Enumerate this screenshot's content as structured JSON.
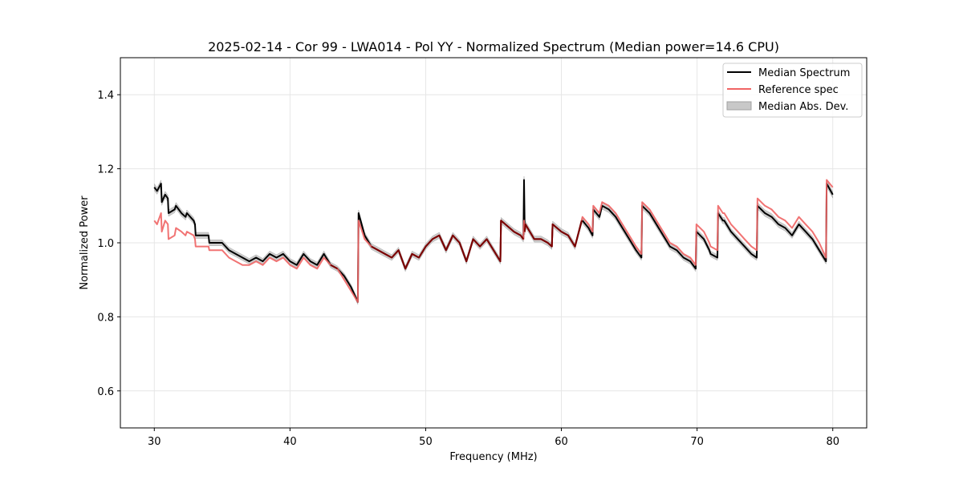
{
  "chart_data": {
    "type": "line",
    "title": "2025-02-14 - Cor 99 - LWA014 - Pol YY - Normalized Spectrum (Median power=14.6 CPU)",
    "xlabel": "Frequency (MHz)",
    "ylabel": "Normalized Power",
    "xlim": [
      27.5,
      82.5
    ],
    "ylim": [
      0.5,
      1.5
    ],
    "xticks": [
      30,
      40,
      50,
      60,
      70,
      80
    ],
    "xtick_labels": [
      "30",
      "40",
      "50",
      "60",
      "70",
      "80"
    ],
    "yticks": [
      0.6,
      0.8,
      1.0,
      1.2,
      1.4
    ],
    "ytick_labels": [
      "0.6",
      "0.8",
      "1.0",
      "1.2",
      "1.4"
    ],
    "grid": true,
    "legend_position": "top-right",
    "legend": [
      {
        "label": "Median Spectrum",
        "kind": "line",
        "color": "#000000"
      },
      {
        "label": "Reference spec",
        "kind": "line",
        "color": "#f06464"
      },
      {
        "label": "Median Abs. Dev.",
        "kind": "patch",
        "color": "#c8c8c8"
      }
    ],
    "series": [
      {
        "name": "Median Spectrum",
        "color": "#000000",
        "x": [
          30.0,
          30.2,
          30.5,
          30.55,
          30.8,
          31.0,
          31.05,
          31.5,
          31.6,
          32.0,
          32.3,
          32.4,
          32.9,
          33.0,
          33.05,
          34.0,
          34.05,
          35.0,
          35.5,
          36.0,
          36.5,
          37.0,
          37.5,
          38.0,
          38.5,
          39.0,
          39.5,
          40.0,
          40.5,
          41.0,
          41.5,
          42.0,
          42.5,
          43.0,
          43.5,
          44.0,
          44.5,
          45.0,
          45.05,
          45.5,
          46.0,
          46.5,
          47.0,
          47.5,
          48.0,
          48.5,
          49.0,
          49.5,
          50.0,
          50.5,
          51.0,
          51.5,
          52.0,
          52.5,
          53.0,
          53.5,
          54.0,
          54.5,
          55.0,
          55.5,
          55.55,
          56.5,
          57.0,
          57.2,
          57.25,
          57.3,
          57.35,
          58.0,
          58.5,
          59.0,
          59.3,
          59.35,
          60.0,
          60.5,
          61.0,
          61.5,
          61.55,
          62.0,
          62.3,
          62.35,
          62.8,
          63.0,
          63.5,
          64.0,
          64.5,
          65.0,
          65.5,
          65.9,
          65.95,
          66.5,
          67.0,
          67.5,
          68.0,
          68.5,
          69.0,
          69.5,
          69.9,
          69.95,
          70.5,
          70.9,
          71.0,
          71.5,
          71.55,
          71.9,
          72.0,
          72.5,
          73.0,
          73.5,
          74.0,
          74.4,
          74.45,
          75.0,
          75.5,
          76.0,
          76.5,
          77.0,
          77.5,
          78.0,
          78.5,
          79.0,
          79.5,
          79.55,
          80.0
        ],
        "y": [
          1.15,
          1.14,
          1.16,
          1.11,
          1.13,
          1.12,
          1.08,
          1.09,
          1.1,
          1.08,
          1.07,
          1.08,
          1.06,
          1.05,
          1.02,
          1.02,
          1.0,
          1.0,
          0.98,
          0.97,
          0.96,
          0.95,
          0.96,
          0.95,
          0.97,
          0.96,
          0.97,
          0.95,
          0.94,
          0.97,
          0.95,
          0.94,
          0.97,
          0.94,
          0.93,
          0.91,
          0.88,
          0.84,
          1.08,
          1.02,
          0.99,
          0.98,
          0.97,
          0.96,
          0.98,
          0.93,
          0.97,
          0.96,
          0.99,
          1.01,
          1.02,
          0.98,
          1.02,
          1.0,
          0.95,
          1.01,
          0.99,
          1.01,
          0.98,
          0.95,
          1.06,
          1.03,
          1.02,
          1.01,
          1.17,
          1.03,
          1.05,
          1.01,
          1.01,
          1.0,
          0.99,
          1.05,
          1.03,
          1.02,
          0.99,
          1.06,
          1.06,
          1.04,
          1.02,
          1.09,
          1.07,
          1.1,
          1.09,
          1.07,
          1.04,
          1.01,
          0.98,
          0.96,
          1.1,
          1.08,
          1.05,
          1.02,
          0.99,
          0.98,
          0.96,
          0.95,
          0.93,
          1.03,
          1.01,
          0.98,
          0.97,
          0.96,
          1.08,
          1.06,
          1.06,
          1.03,
          1.01,
          0.99,
          0.97,
          0.96,
          1.1,
          1.08,
          1.07,
          1.05,
          1.04,
          1.02,
          1.05,
          1.03,
          1.01,
          0.98,
          0.95,
          1.16,
          1.13
        ]
      },
      {
        "name": "Reference spec",
        "color": "#f06464",
        "x": [
          30.0,
          30.2,
          30.5,
          30.55,
          30.8,
          31.0,
          31.05,
          31.5,
          31.6,
          32.0,
          32.3,
          32.4,
          32.9,
          33.0,
          33.05,
          34.0,
          34.05,
          35.0,
          35.5,
          36.0,
          36.5,
          37.0,
          37.5,
          38.0,
          38.5,
          39.0,
          39.5,
          40.0,
          40.5,
          41.0,
          41.5,
          42.0,
          42.5,
          43.0,
          43.5,
          44.0,
          44.5,
          45.0,
          45.05,
          45.5,
          46.0,
          46.5,
          47.0,
          47.5,
          48.0,
          48.5,
          49.0,
          49.5,
          50.0,
          50.5,
          51.0,
          51.5,
          52.0,
          52.5,
          53.0,
          53.5,
          54.0,
          54.5,
          55.0,
          55.5,
          55.55,
          56.5,
          57.0,
          57.2,
          57.25,
          57.3,
          57.35,
          58.0,
          58.5,
          59.0,
          59.3,
          59.35,
          60.0,
          60.5,
          61.0,
          61.5,
          61.55,
          62.0,
          62.3,
          62.35,
          62.8,
          63.0,
          63.5,
          64.0,
          64.5,
          65.0,
          65.5,
          65.9,
          65.95,
          66.5,
          67.0,
          67.5,
          68.0,
          68.5,
          69.0,
          69.5,
          69.9,
          69.95,
          70.5,
          70.9,
          71.0,
          71.5,
          71.55,
          71.9,
          72.0,
          72.5,
          73.0,
          73.5,
          74.0,
          74.4,
          74.45,
          75.0,
          75.5,
          76.0,
          76.5,
          77.0,
          77.5,
          78.0,
          78.5,
          79.0,
          79.5,
          79.55,
          80.0
        ],
        "y": [
          1.06,
          1.05,
          1.08,
          1.03,
          1.06,
          1.05,
          1.01,
          1.02,
          1.04,
          1.03,
          1.02,
          1.03,
          1.02,
          1.01,
          0.99,
          0.99,
          0.98,
          0.98,
          0.96,
          0.95,
          0.94,
          0.94,
          0.95,
          0.94,
          0.96,
          0.95,
          0.96,
          0.94,
          0.93,
          0.96,
          0.94,
          0.93,
          0.96,
          0.94,
          0.93,
          0.9,
          0.87,
          0.84,
          1.06,
          1.01,
          0.99,
          0.98,
          0.97,
          0.96,
          0.98,
          0.93,
          0.97,
          0.96,
          0.99,
          1.01,
          1.02,
          0.98,
          1.02,
          1.0,
          0.95,
          1.01,
          0.99,
          1.01,
          0.98,
          0.95,
          1.06,
          1.03,
          1.02,
          1.01,
          1.06,
          1.03,
          1.05,
          1.01,
          1.01,
          1.0,
          0.99,
          1.05,
          1.03,
          1.02,
          0.99,
          1.06,
          1.07,
          1.05,
          1.03,
          1.1,
          1.08,
          1.11,
          1.1,
          1.08,
          1.05,
          1.02,
          0.99,
          0.97,
          1.11,
          1.09,
          1.06,
          1.03,
          1.0,
          0.99,
          0.97,
          0.96,
          0.94,
          1.05,
          1.03,
          1.0,
          0.99,
          0.98,
          1.1,
          1.08,
          1.08,
          1.05,
          1.03,
          1.01,
          0.99,
          0.98,
          1.12,
          1.1,
          1.09,
          1.07,
          1.06,
          1.04,
          1.07,
          1.05,
          1.03,
          1.0,
          0.96,
          1.17,
          1.15
        ]
      }
    ]
  }
}
